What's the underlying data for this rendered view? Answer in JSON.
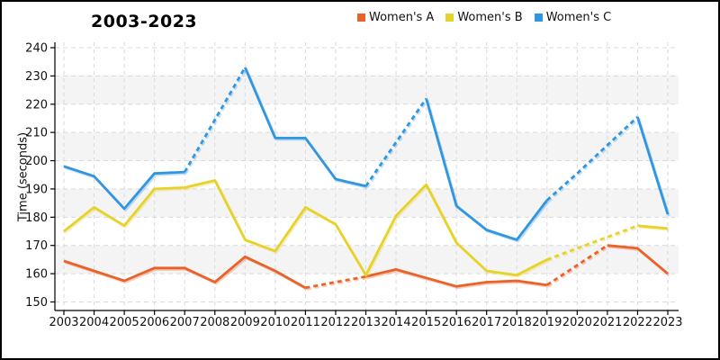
{
  "title": "2003-2023",
  "ylabel": "Time (seconds)",
  "chart_data": {
    "type": "line",
    "title": "2003-2023",
    "xlabel": "",
    "ylabel": "Time (seconds)",
    "categories": [
      2003,
      2004,
      2005,
      2006,
      2007,
      2008,
      2009,
      2010,
      2011,
      2012,
      2013,
      2014,
      2015,
      2016,
      2017,
      2018,
      2019,
      2020,
      2021,
      2022,
      2023
    ],
    "yticks": [
      150,
      160,
      170,
      180,
      190,
      200,
      210,
      220,
      230,
      240
    ],
    "ylim": [
      150,
      240
    ],
    "grid": "dashed-both",
    "band_ranges": [
      [
        160,
        170
      ],
      [
        180,
        190
      ],
      [
        200,
        210
      ],
      [
        220,
        230
      ]
    ],
    "band_color": "#f4f4f4",
    "grid_color": "#d9d9d9",
    "axis_color": "#000000",
    "legend_position": "top-right",
    "series": [
      {
        "name": "Women's A",
        "color": "#e8622a",
        "values": [
          164.5,
          161,
          157.5,
          162,
          162,
          157,
          166,
          161,
          155,
          157,
          159,
          161.5,
          158.5,
          155.5,
          157,
          157.5,
          156,
          163,
          170,
          169,
          160
        ],
        "dashed_segments": [
          [
            8,
            10
          ],
          [
            16,
            18
          ]
        ]
      },
      {
        "name": "Women's B",
        "color": "#e6d22b",
        "values": [
          175,
          183.5,
          177,
          190,
          190.5,
          193,
          172,
          168,
          183.5,
          177.5,
          159.5,
          180.5,
          191.5,
          171,
          161,
          159.5,
          165,
          169,
          173,
          177,
          176
        ],
        "dashed_segments": [
          [
            16,
            19
          ]
        ]
      },
      {
        "name": "Women's C",
        "color": "#3096e0",
        "values": [
          198,
          194.5,
          183,
          195.5,
          196,
          214.5,
          233,
          208,
          208,
          193.5,
          191,
          206.5,
          222,
          184,
          175.5,
          172,
          186,
          195.5,
          205.5,
          215.5,
          181
        ],
        "dashed_segments": [
          [
            4,
            6
          ],
          [
            10,
            12
          ],
          [
            16,
            19
          ]
        ]
      }
    ]
  }
}
